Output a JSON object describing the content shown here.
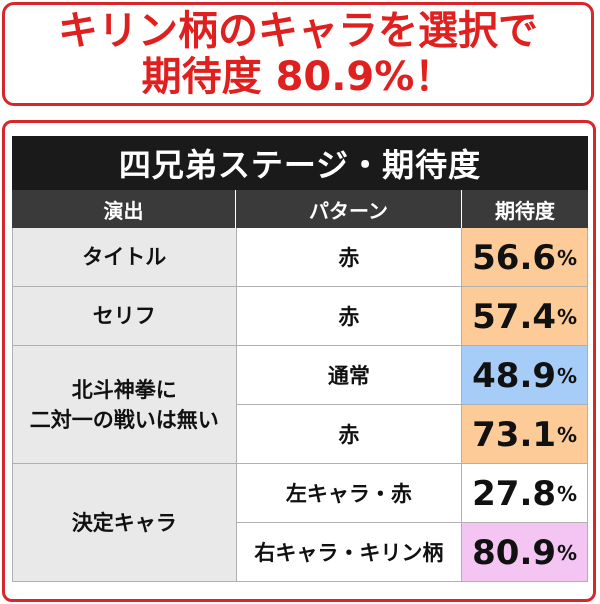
{
  "banner": {
    "line1": "キリン柄のキャラを選択で",
    "line2": "期待度 80.9%！"
  },
  "table": {
    "title": "四兄弟ステージ・期待度",
    "headers": {
      "col1": "演出",
      "col2": "パターン",
      "col3": "期待度"
    },
    "groups": [
      {
        "label": "タイトル",
        "rows": [
          {
            "pattern": "赤",
            "value": "56.6",
            "unit": "%",
            "color": "#fccb98"
          }
        ]
      },
      {
        "label": "セリフ",
        "rows": [
          {
            "pattern": "赤",
            "value": "57.4",
            "unit": "%",
            "color": "#fccb98"
          }
        ]
      },
      {
        "label_line1": "北斗神拳に",
        "label_line2": "二対一の戦いは無い",
        "rows": [
          {
            "pattern": "通常",
            "value": "48.9",
            "unit": "%",
            "color": "#a6cdf7"
          },
          {
            "pattern": "赤",
            "value": "73.1",
            "unit": "%",
            "color": "#fccb98"
          }
        ]
      },
      {
        "label": "決定キャラ",
        "rows": [
          {
            "pattern": "左キャラ・赤",
            "value": "27.8",
            "unit": "%",
            "color": "#ffffff"
          },
          {
            "pattern": "右キャラ・キリン柄",
            "value": "80.9",
            "unit": "%",
            "color": "#f4c4f2"
          }
        ]
      }
    ]
  },
  "colors": {
    "accent": "#e0201f",
    "header": "#3a3a3a",
    "title_bar": "#1a1a1a"
  }
}
